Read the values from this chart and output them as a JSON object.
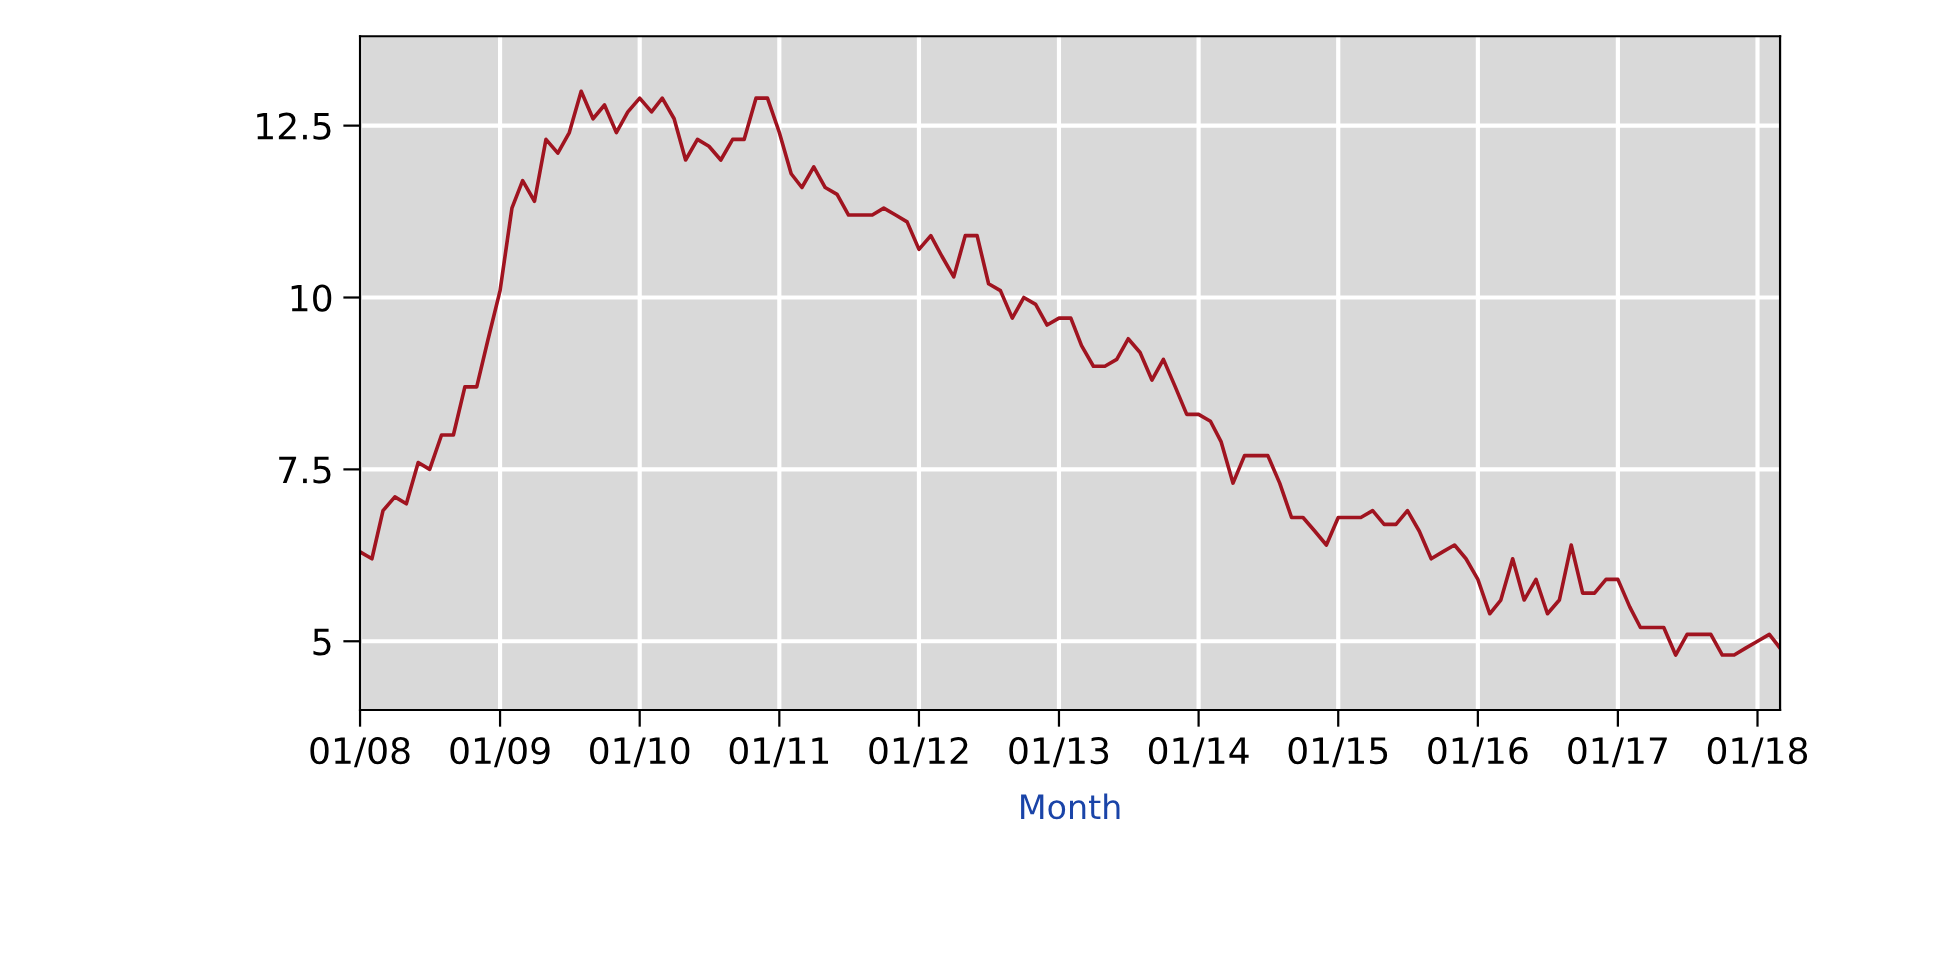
{
  "chart_data": {
    "type": "line",
    "xlabel": "Month",
    "x": [
      "2008-01",
      "2008-02",
      "2008-03",
      "2008-04",
      "2008-05",
      "2008-06",
      "2008-07",
      "2008-08",
      "2008-09",
      "2008-10",
      "2008-11",
      "2008-12",
      "2009-01",
      "2009-02",
      "2009-03",
      "2009-04",
      "2009-05",
      "2009-06",
      "2009-07",
      "2009-08",
      "2009-09",
      "2009-10",
      "2009-11",
      "2009-12",
      "2010-01",
      "2010-02",
      "2010-03",
      "2010-04",
      "2010-05",
      "2010-06",
      "2010-07",
      "2010-08",
      "2010-09",
      "2010-10",
      "2010-11",
      "2010-12",
      "2011-01",
      "2011-02",
      "2011-03",
      "2011-04",
      "2011-05",
      "2011-06",
      "2011-07",
      "2011-08",
      "2011-09",
      "2011-10",
      "2011-11",
      "2011-12",
      "2012-01",
      "2012-02",
      "2012-03",
      "2012-04",
      "2012-05",
      "2012-06",
      "2012-07",
      "2012-08",
      "2012-09",
      "2012-10",
      "2012-11",
      "2012-12",
      "2013-01",
      "2013-02",
      "2013-03",
      "2013-04",
      "2013-05",
      "2013-06",
      "2013-07",
      "2013-08",
      "2013-09",
      "2013-10",
      "2013-11",
      "2013-12",
      "2014-01",
      "2014-02",
      "2014-03",
      "2014-04",
      "2014-05",
      "2014-06",
      "2014-07",
      "2014-08",
      "2014-09",
      "2014-10",
      "2014-11",
      "2014-12",
      "2015-01",
      "2015-02",
      "2015-03",
      "2015-04",
      "2015-05",
      "2015-06",
      "2015-07",
      "2015-08",
      "2015-09",
      "2015-10",
      "2015-11",
      "2015-12",
      "2016-01",
      "2016-02",
      "2016-03",
      "2016-04",
      "2016-05",
      "2016-06",
      "2016-07",
      "2016-08",
      "2016-09",
      "2016-10",
      "2016-11",
      "2016-12",
      "2017-01",
      "2017-02",
      "2017-03",
      "2017-04",
      "2017-05",
      "2017-06",
      "2017-07",
      "2017-08",
      "2017-09",
      "2017-10",
      "2017-11",
      "2017-12",
      "2018-01",
      "2018-02",
      "2018-03"
    ],
    "series": [
      {
        "color": "#a01420",
        "values": [
          6.3,
          6.2,
          6.9,
          7.1,
          7.0,
          7.6,
          7.5,
          8.0,
          8.0,
          8.7,
          8.7,
          9.4,
          10.1,
          11.3,
          11.7,
          11.4,
          12.3,
          12.1,
          12.4,
          13.0,
          12.6,
          12.8,
          12.4,
          12.7,
          12.9,
          12.7,
          12.9,
          12.6,
          12.0,
          12.3,
          12.2,
          12.0,
          12.3,
          12.3,
          12.9,
          12.9,
          12.4,
          11.8,
          11.6,
          11.9,
          11.6,
          11.5,
          11.2,
          11.2,
          11.2,
          11.3,
          11.2,
          11.1,
          10.7,
          10.9,
          10.6,
          10.3,
          10.9,
          10.9,
          10.2,
          10.1,
          9.7,
          10.0,
          9.9,
          9.6,
          9.7,
          9.7,
          9.3,
          9.0,
          9.0,
          9.1,
          9.4,
          9.2,
          8.8,
          9.1,
          8.7,
          8.3,
          8.3,
          8.2,
          7.9,
          7.3,
          7.7,
          7.7,
          7.7,
          7.3,
          6.8,
          6.8,
          6.6,
          6.4,
          6.8,
          6.8,
          6.8,
          6.9,
          6.7,
          6.7,
          6.9,
          6.6,
          6.2,
          6.3,
          6.4,
          6.2,
          5.9,
          5.4,
          5.6,
          6.2,
          5.6,
          5.9,
          5.4,
          5.6,
          6.4,
          5.7,
          5.7,
          5.9,
          5.9,
          5.5,
          5.2,
          5.2,
          5.2,
          4.8,
          5.1,
          5.1,
          5.1,
          4.8,
          4.8,
          4.9,
          5.0,
          5.1,
          4.9
        ]
      }
    ],
    "xlim": [
      "2008-01",
      "2018-03"
    ],
    "xticks": [
      {
        "value": "2008-01",
        "label": "01/08"
      },
      {
        "value": "2009-01",
        "label": "01/09"
      },
      {
        "value": "2010-01",
        "label": "01/10"
      },
      {
        "value": "2011-01",
        "label": "01/11"
      },
      {
        "value": "2012-01",
        "label": "01/12"
      },
      {
        "value": "2013-01",
        "label": "01/13"
      },
      {
        "value": "2014-01",
        "label": "01/14"
      },
      {
        "value": "2015-01",
        "label": "01/15"
      },
      {
        "value": "2016-01",
        "label": "01/16"
      },
      {
        "value": "2017-01",
        "label": "01/17"
      },
      {
        "value": "2018-01",
        "label": "01/18"
      }
    ],
    "ylim": [
      4,
      13.8
    ],
    "yticks": [
      5,
      7.5,
      10,
      12.5
    ],
    "grid": true,
    "legend": false,
    "marker": "none",
    "line_style": "solid"
  }
}
